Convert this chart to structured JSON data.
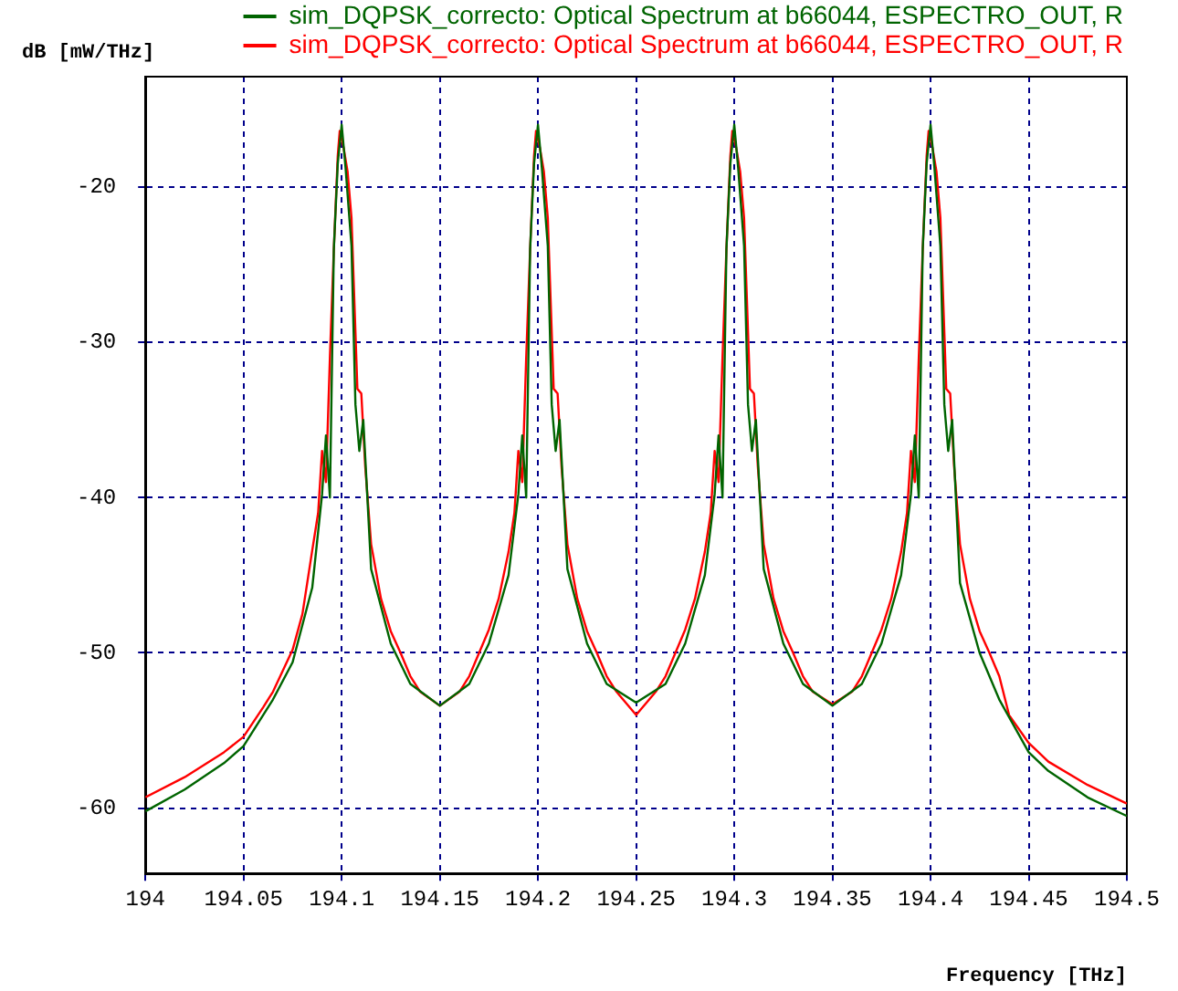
{
  "chart_data": {
    "type": "line",
    "xlabel": "Frequency [THz]",
    "ylabel": "dB [mW/THz]",
    "xlim": [
      194,
      194.5
    ],
    "xticks": [
      194,
      194.05,
      194.1,
      194.15,
      194.2,
      194.25,
      194.3,
      194.35,
      194.4,
      194.45,
      194.5
    ],
    "ylim": [
      -64.2,
      -12.9
    ],
    "yticks": [
      -60,
      -50,
      -40,
      -30,
      -20
    ],
    "grid": true,
    "legend": "top",
    "marker": "none",
    "line_style": "solid",
    "series": [
      {
        "name": "sim_DQPSK_correcto: Optical Spectrum at b66044, ESPECTRO_OUT, R",
        "color": "#006400",
        "x": [
          194,
          194.02,
          194.04,
          194.05,
          194.06,
          194.065,
          194.075,
          194.085,
          194.09,
          194.092,
          194.094,
          194.096,
          194.098,
          194.1,
          194.102,
          194.105,
          194.107,
          194.109,
          194.111,
          194.115,
          194.125,
          194.135,
          194.15,
          194.165,
          194.175,
          194.185,
          194.19,
          194.192,
          194.194,
          194.196,
          194.198,
          194.2,
          194.202,
          194.205,
          194.207,
          194.209,
          194.211,
          194.215,
          194.225,
          194.235,
          194.25,
          194.265,
          194.275,
          194.285,
          194.29,
          194.292,
          194.294,
          194.296,
          194.298,
          194.3,
          194.302,
          194.305,
          194.307,
          194.309,
          194.311,
          194.315,
          194.325,
          194.335,
          194.35,
          194.365,
          194.375,
          194.385,
          194.39,
          194.392,
          194.394,
          194.396,
          194.398,
          194.4,
          194.402,
          194.405,
          194.407,
          194.409,
          194.411,
          194.415,
          194.425,
          194.435,
          194.45,
          194.46,
          194.48,
          194.5
        ],
        "values": [
          -60.2,
          -58.8,
          -57.1,
          -56.0,
          -54.0,
          -53.0,
          -50.6,
          -45.8,
          -39.8,
          -36,
          -40,
          -24,
          -18.5,
          -16.0,
          -18.8,
          -23.8,
          -34,
          -37,
          -35,
          -44.6,
          -49.4,
          -52.0,
          -53.4,
          -52.0,
          -49.4,
          -45.0,
          -39.8,
          -36,
          -40,
          -24,
          -18.5,
          -16.0,
          -18.8,
          -23.8,
          -34,
          -37,
          -35,
          -44.6,
          -49.4,
          -52.0,
          -53.2,
          -52.0,
          -49.4,
          -45.0,
          -39.8,
          -36,
          -40,
          -24,
          -18.5,
          -16.0,
          -18.8,
          -23.8,
          -34,
          -37,
          -35,
          -44.6,
          -49.4,
          -52.0,
          -53.4,
          -52.0,
          -49.4,
          -45.0,
          -39.8,
          -36,
          -40,
          -24,
          -18.5,
          -16.0,
          -18.8,
          -23.8,
          -34,
          -37,
          -35,
          -45.5,
          -50.0,
          -53.0,
          -56.4,
          -57.6,
          -59.3,
          -60.5
        ]
      },
      {
        "name": "sim_DQPSK_correcto: Optical Spectrum at b66044, ESPECTRO_OUT, R",
        "color": "#ff0000",
        "x": [
          194,
          194.02,
          194.04,
          194.05,
          194.06,
          194.065,
          194.075,
          194.08,
          194.085,
          194.088,
          194.09,
          194.092,
          194.094,
          194.096,
          194.098,
          194.099,
          194.101,
          194.103,
          194.105,
          194.108,
          194.11,
          194.112,
          194.115,
          194.12,
          194.125,
          194.13,
          194.135,
          194.14,
          194.15,
          194.16,
          194.165,
          194.17,
          194.175,
          194.18,
          194.185,
          194.188,
          194.19,
          194.192,
          194.194,
          194.196,
          194.198,
          194.199,
          194.201,
          194.203,
          194.205,
          194.208,
          194.21,
          194.212,
          194.215,
          194.22,
          194.225,
          194.23,
          194.235,
          194.24,
          194.25,
          194.26,
          194.265,
          194.27,
          194.275,
          194.28,
          194.285,
          194.288,
          194.29,
          194.292,
          194.294,
          194.296,
          194.298,
          194.299,
          194.301,
          194.303,
          194.305,
          194.308,
          194.31,
          194.312,
          194.315,
          194.32,
          194.325,
          194.33,
          194.335,
          194.34,
          194.35,
          194.36,
          194.365,
          194.37,
          194.375,
          194.38,
          194.385,
          194.388,
          194.39,
          194.392,
          194.394,
          194.396,
          194.398,
          194.399,
          194.401,
          194.403,
          194.405,
          194.408,
          194.41,
          194.412,
          194.415,
          194.42,
          194.425,
          194.43,
          194.435,
          194.44,
          194.45,
          194.46,
          194.48,
          194.5
        ],
        "values": [
          -59.3,
          -58.0,
          -56.4,
          -55.4,
          -53.5,
          -52.5,
          -49.8,
          -47.5,
          -43.4,
          -41,
          -37,
          -39,
          -31,
          -24,
          -18,
          -16.4,
          -17.5,
          -19,
          -22,
          -33,
          -33.3,
          -38,
          -43,
          -46.5,
          -48.6,
          -50,
          -51.5,
          -52.5,
          -53.4,
          -52.5,
          -51.5,
          -50,
          -48.5,
          -46.5,
          -43.5,
          -41,
          -37,
          -39,
          -31,
          -24,
          -18,
          -16.4,
          -17.5,
          -19,
          -22,
          -33,
          -33.3,
          -38,
          -43,
          -46.5,
          -48.6,
          -50,
          -51.5,
          -52.5,
          -54.0,
          -52.5,
          -51.5,
          -50,
          -48.5,
          -46.5,
          -43.5,
          -41,
          -37,
          -39,
          -31,
          -24,
          -18,
          -16.4,
          -17.5,
          -19,
          -22,
          -33,
          -33.3,
          -38,
          -43,
          -46.5,
          -48.6,
          -50,
          -51.5,
          -52.5,
          -53.3,
          -52.5,
          -51.5,
          -50,
          -48.5,
          -46.5,
          -43.5,
          -41,
          -37,
          -39,
          -31,
          -24,
          -18,
          -16.4,
          -17.5,
          -19,
          -22,
          -33,
          -33.3,
          -38,
          -43,
          -46.5,
          -48.6,
          -50,
          -51.5,
          -54,
          -55.8,
          -57,
          -58.5,
          -59.7
        ]
      }
    ]
  }
}
